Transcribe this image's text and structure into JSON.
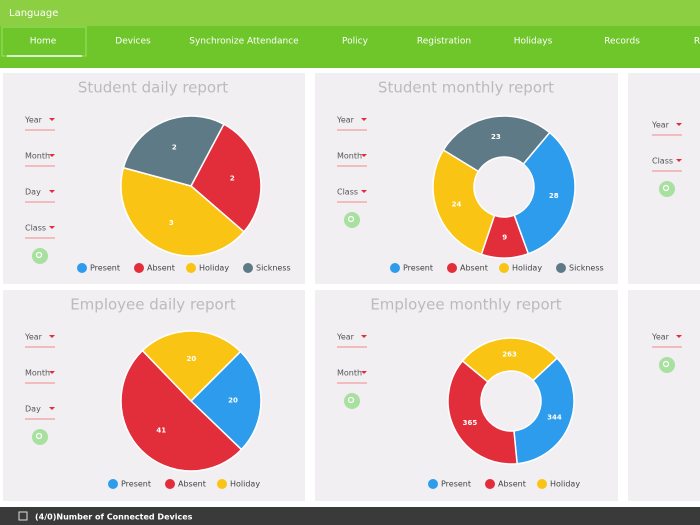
{
  "header": {
    "title": "Language"
  },
  "nav": [
    "Home",
    "Devices",
    "Synchronize Attendance",
    "Policy",
    "Registration",
    "Holidays",
    "Records",
    "R"
  ],
  "panels": [
    {
      "form_fields": [
        "Year",
        "Month",
        "Day",
        "Class"
      ],
      "chart_data": {
        "type": "pie",
        "title": "Student daily report",
        "categories": [
          "Present",
          "Absent",
          "Holiday",
          "Sickness"
        ],
        "values": [
          0,
          2,
          3,
          2
        ],
        "colors": [
          "#2d9cec",
          "#e22d3a",
          "#f9c414",
          "#5f7a87"
        ]
      }
    },
    {
      "form_fields": [
        "Year",
        "Month",
        "Class"
      ],
      "chart_data": {
        "type": "donut",
        "title": "Student monthly report",
        "categories": [
          "Present",
          "Absent",
          "Holiday",
          "Sickness"
        ],
        "values": [
          28,
          9,
          24,
          23
        ],
        "colors": [
          "#2d9cec",
          "#e22d3a",
          "#f9c414",
          "#5f7a87"
        ]
      }
    },
    {
      "form_fields": [
        "Year",
        "Class"
      ]
    },
    {
      "form_fields": [
        "Year",
        "Month",
        "Day"
      ],
      "chart_data": {
        "type": "pie",
        "title": "Employee daily report",
        "categories": [
          "Present",
          "Absent",
          "Holiday"
        ],
        "values": [
          20,
          41,
          20
        ],
        "colors": [
          "#2d9cec",
          "#e22d3a",
          "#f9c414"
        ]
      }
    },
    {
      "form_fields": [
        "Year",
        "Month"
      ],
      "chart_data": {
        "type": "donut",
        "title": "Employee monthly report",
        "categories": [
          "Present",
          "Absent",
          "Holiday"
        ],
        "values": [
          344,
          365,
          263
        ],
        "colors": [
          "#2d9cec",
          "#e22d3a",
          "#f9c414"
        ]
      }
    },
    {
      "form_fields": [
        "Year"
      ]
    }
  ],
  "status": "(4/0)Number of Connected Devices"
}
